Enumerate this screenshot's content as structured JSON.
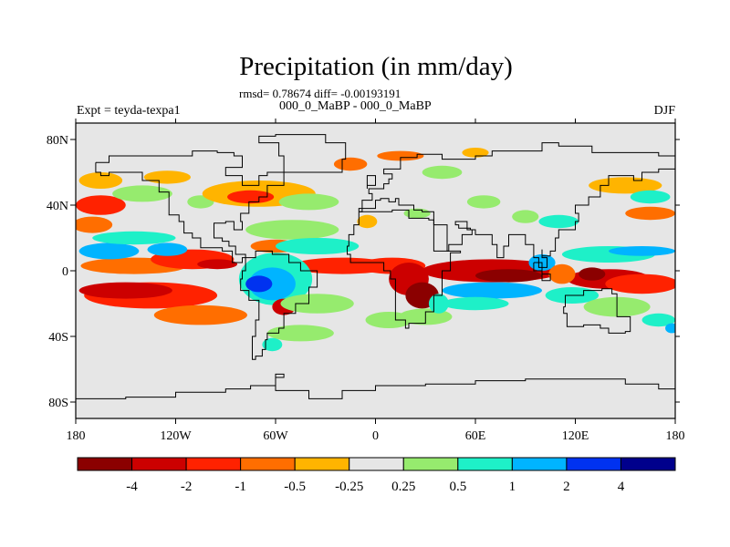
{
  "chart_data": {
    "type": "heatmap",
    "title": "Precipitation (in mm/day)",
    "subtitle_stats": "rmsd= 0.78674 diff= -0.00193191",
    "subtitle_run": "000_0_MaBP - 000_0_MaBP",
    "left_label": "Expt = teyda-texpa1",
    "right_label": "DJF",
    "x_ticks": [
      "180",
      "120W",
      "60W",
      "0",
      "60E",
      "120E",
      "180"
    ],
    "y_ticks": [
      "80N",
      "40N",
      "0",
      "40S",
      "80S"
    ],
    "xlim": [
      -180,
      180
    ],
    "ylim": [
      -90,
      90
    ],
    "colorbar": {
      "colors": [
        "#8b0000",
        "#cc0000",
        "#ff2200",
        "#ff6e00",
        "#ffb400",
        "#e6e6e6",
        "#96eb6e",
        "#1ef0c8",
        "#00b4ff",
        "#0032f0",
        "#00008c"
      ],
      "labels": [
        "-4",
        "-2",
        "-1",
        "-0.5",
        "-0.25",
        "0.25",
        "0.5",
        "1",
        "2",
        "4"
      ]
    },
    "anomaly_regions": [
      {
        "lon": -135,
        "lat": -15,
        "rlon": 40,
        "rlat": 8,
        "level": 2
      },
      {
        "lon": -150,
        "lat": -12,
        "rlon": 28,
        "rlat": 5,
        "level": 1
      },
      {
        "lon": -105,
        "lat": -27,
        "rlon": 28,
        "rlat": 6,
        "level": 3
      },
      {
        "lon": -145,
        "lat": 3,
        "rlon": 32,
        "rlat": 5,
        "level": 3
      },
      {
        "lon": -110,
        "lat": 7,
        "rlon": 25,
        "rlat": 6,
        "level": 2
      },
      {
        "lon": -95,
        "lat": 4,
        "rlon": 12,
        "rlat": 3,
        "level": 1
      },
      {
        "lon": -160,
        "lat": 12,
        "rlon": 18,
        "rlat": 5,
        "level": 8
      },
      {
        "lon": -125,
        "lat": 13,
        "rlon": 12,
        "rlat": 4,
        "level": 8
      },
      {
        "lon": -145,
        "lat": 20,
        "rlon": 25,
        "rlat": 4,
        "level": 7
      },
      {
        "lon": -170,
        "lat": 28,
        "rlon": 12,
        "rlat": 5,
        "level": 3
      },
      {
        "lon": -165,
        "lat": 40,
        "rlon": 15,
        "rlat": 6,
        "level": 2
      },
      {
        "lon": -165,
        "lat": 55,
        "rlon": 13,
        "rlat": 5,
        "level": 4
      },
      {
        "lon": -125,
        "lat": 57,
        "rlon": 14,
        "rlat": 4,
        "level": 4
      },
      {
        "lon": -140,
        "lat": 47,
        "rlon": 18,
        "rlat": 5,
        "level": 6
      },
      {
        "lon": -105,
        "lat": 42,
        "rlon": 8,
        "rlat": 4,
        "level": 6
      },
      {
        "lon": -70,
        "lat": 47,
        "rlon": 34,
        "rlat": 8,
        "level": 4
      },
      {
        "lon": -75,
        "lat": 45,
        "rlon": 14,
        "rlat": 4,
        "level": 2
      },
      {
        "lon": -40,
        "lat": 42,
        "rlon": 18,
        "rlat": 5,
        "level": 6
      },
      {
        "lon": -50,
        "lat": 25,
        "rlon": 28,
        "rlat": 6,
        "level": 6
      },
      {
        "lon": -60,
        "lat": 15,
        "rlon": 15,
        "rlat": 4,
        "level": 3
      },
      {
        "lon": -35,
        "lat": 15,
        "rlon": 25,
        "rlat": 5,
        "level": 7
      },
      {
        "lon": -20,
        "lat": 3,
        "rlon": 30,
        "rlat": 5,
        "level": 2
      },
      {
        "lon": -60,
        "lat": -5,
        "rlon": 22,
        "rlat": 16,
        "level": 7
      },
      {
        "lon": -62,
        "lat": -8,
        "rlon": 14,
        "rlat": 10,
        "level": 8
      },
      {
        "lon": -70,
        "lat": -8,
        "rlon": 8,
        "rlat": 5,
        "level": 9
      },
      {
        "lon": -55,
        "lat": -22,
        "rlon": 7,
        "rlat": 5,
        "level": 1
      },
      {
        "lon": -35,
        "lat": -20,
        "rlon": 22,
        "rlat": 6,
        "level": 6
      },
      {
        "lon": -45,
        "lat": -38,
        "rlon": 20,
        "rlat": 5,
        "level": 6
      },
      {
        "lon": -62,
        "lat": -45,
        "rlon": 6,
        "rlat": 4,
        "level": 7
      },
      {
        "lon": 8,
        "lat": -30,
        "rlon": 14,
        "rlat": 5,
        "level": 6
      },
      {
        "lon": 30,
        "lat": -28,
        "rlon": 16,
        "rlat": 5,
        "level": 6
      },
      {
        "lon": 10,
        "lat": 3,
        "rlon": 20,
        "rlat": 5,
        "level": 2
      },
      {
        "lon": 20,
        "lat": -5,
        "rlon": 12,
        "rlat": 10,
        "level": 1
      },
      {
        "lon": 28,
        "lat": -15,
        "rlon": 10,
        "rlat": 8,
        "level": 0
      },
      {
        "lon": 38,
        "lat": -20,
        "rlon": 6,
        "rlat": 6,
        "level": 7
      },
      {
        "lon": 70,
        "lat": 0,
        "rlon": 42,
        "rlat": 7,
        "level": 1
      },
      {
        "lon": 80,
        "lat": -3,
        "rlon": 20,
        "rlat": 4,
        "level": 0
      },
      {
        "lon": 70,
        "lat": -12,
        "rlon": 30,
        "rlat": 5,
        "level": 8
      },
      {
        "lon": 60,
        "lat": -20,
        "rlon": 20,
        "rlat": 4,
        "level": 7
      },
      {
        "lon": 140,
        "lat": -5,
        "rlon": 25,
        "rlat": 6,
        "level": 1
      },
      {
        "lon": 130,
        "lat": -2,
        "rlon": 8,
        "rlat": 4,
        "level": 0
      },
      {
        "lon": 160,
        "lat": -8,
        "rlon": 22,
        "rlat": 6,
        "level": 2
      },
      {
        "lon": 140,
        "lat": 10,
        "rlon": 28,
        "rlat": 5,
        "level": 7
      },
      {
        "lon": 160,
        "lat": 12,
        "rlon": 20,
        "rlat": 3,
        "level": 8
      },
      {
        "lon": 100,
        "lat": 5,
        "rlon": 8,
        "rlat": 5,
        "level": 8
      },
      {
        "lon": 112,
        "lat": -2,
        "rlon": 8,
        "rlat": 6,
        "level": 3
      },
      {
        "lon": 118,
        "lat": -15,
        "rlon": 16,
        "rlat": 5,
        "level": 7
      },
      {
        "lon": 145,
        "lat": -22,
        "rlon": 20,
        "rlat": 6,
        "level": 6
      },
      {
        "lon": 165,
        "lat": 35,
        "rlon": 15,
        "rlat": 4,
        "level": 3
      },
      {
        "lon": 150,
        "lat": 52,
        "rlon": 22,
        "rlat": 5,
        "level": 4
      },
      {
        "lon": 165,
        "lat": 45,
        "rlon": 12,
        "rlat": 4,
        "level": 7
      },
      {
        "lon": 110,
        "lat": 30,
        "rlon": 12,
        "rlat": 4,
        "level": 7
      },
      {
        "lon": 90,
        "lat": 33,
        "rlon": 8,
        "rlat": 4,
        "level": 6
      },
      {
        "lon": 65,
        "lat": 42,
        "rlon": 10,
        "rlat": 4,
        "level": 6
      },
      {
        "lon": 40,
        "lat": 60,
        "rlon": 12,
        "rlat": 4,
        "level": 6
      },
      {
        "lon": 15,
        "lat": 70,
        "rlon": 14,
        "rlat": 3,
        "level": 3
      },
      {
        "lon": -15,
        "lat": 65,
        "rlon": 10,
        "rlat": 4,
        "level": 3
      },
      {
        "lon": 60,
        "lat": 72,
        "rlon": 8,
        "rlat": 3,
        "level": 4
      },
      {
        "lon": 170,
        "lat": -30,
        "rlon": 10,
        "rlat": 4,
        "level": 7
      },
      {
        "lon": 178,
        "lat": -35,
        "rlon": 4,
        "rlat": 3,
        "level": 8
      },
      {
        "lon": -5,
        "lat": 30,
        "rlon": 6,
        "rlat": 4,
        "level": 4
      },
      {
        "lon": 25,
        "lat": 35,
        "rlon": 8,
        "rlat": 3,
        "level": 6
      }
    ],
    "continent_outlines": [
      [
        [
          -168,
          66
        ],
        [
          -160,
          70
        ],
        [
          -140,
          70
        ],
        [
          -125,
          70
        ],
        [
          -110,
          73
        ],
        [
          -95,
          72
        ],
        [
          -85,
          70
        ],
        [
          -80,
          63
        ],
        [
          -90,
          58
        ],
        [
          -80,
          52
        ],
        [
          -70,
          58
        ],
        [
          -65,
          60
        ],
        [
          -55,
          52
        ],
        [
          -65,
          45
        ],
        [
          -70,
          42
        ],
        [
          -76,
          35
        ],
        [
          -81,
          30
        ],
        [
          -80,
          25
        ],
        [
          -85,
          30
        ],
        [
          -90,
          29
        ],
        [
          -97,
          26
        ],
        [
          -97,
          20
        ],
        [
          -92,
          18
        ],
        [
          -88,
          15
        ],
        [
          -84,
          10
        ],
        [
          -78,
          8
        ],
        [
          -80,
          5
        ],
        [
          -86,
          12
        ],
        [
          -92,
          14
        ],
        [
          -105,
          20
        ],
        [
          -110,
          23
        ],
        [
          -115,
          30
        ],
        [
          -118,
          34
        ],
        [
          -124,
          40
        ],
        [
          -124,
          48
        ],
        [
          -130,
          55
        ],
        [
          -140,
          60
        ],
        [
          -150,
          60
        ],
        [
          -160,
          58
        ],
        [
          -165,
          60
        ],
        [
          -168,
          66
        ]
      ],
      [
        [
          -78,
          8
        ],
        [
          -72,
          12
        ],
        [
          -62,
          10
        ],
        [
          -52,
          5
        ],
        [
          -45,
          0
        ],
        [
          -35,
          -5
        ],
        [
          -35,
          -10
        ],
        [
          -40,
          -20
        ],
        [
          -48,
          -26
        ],
        [
          -55,
          -35
        ],
        [
          -58,
          -38
        ],
        [
          -65,
          -42
        ],
        [
          -66,
          -48
        ],
        [
          -68,
          -52
        ],
        [
          -72,
          -54
        ],
        [
          -74,
          -50
        ],
        [
          -74,
          -40
        ],
        [
          -72,
          -30
        ],
        [
          -70,
          -18
        ],
        [
          -76,
          -12
        ],
        [
          -81,
          -5
        ],
        [
          -80,
          0
        ],
        [
          -78,
          8
        ]
      ],
      [
        [
          -55,
          60
        ],
        [
          -45,
          60
        ],
        [
          -20,
          68
        ],
        [
          -18,
          78
        ],
        [
          -30,
          83
        ],
        [
          -60,
          82
        ],
        [
          -70,
          78
        ],
        [
          -58,
          70
        ],
        [
          -55,
          60
        ]
      ],
      [
        [
          -10,
          36
        ],
        [
          -5,
          36
        ],
        [
          10,
          37
        ],
        [
          20,
          32
        ],
        [
          32,
          31
        ],
        [
          35,
          28
        ],
        [
          43,
          12
        ],
        [
          51,
          11
        ],
        [
          45,
          0
        ],
        [
          40,
          -5
        ],
        [
          40,
          -15
        ],
        [
          35,
          -25
        ],
        [
          30,
          -32
        ],
        [
          20,
          -35
        ],
        [
          18,
          -30
        ],
        [
          12,
          -18
        ],
        [
          12,
          -5
        ],
        [
          9,
          0
        ],
        [
          5,
          5
        ],
        [
          -8,
          5
        ],
        [
          -15,
          10
        ],
        [
          -17,
          15
        ],
        [
          -16,
          22
        ],
        [
          -13,
          28
        ],
        [
          -10,
          36
        ]
      ],
      [
        [
          -10,
          36
        ],
        [
          -8,
          43
        ],
        [
          -2,
          47
        ],
        [
          -4,
          50
        ],
        [
          5,
          53
        ],
        [
          8,
          56
        ],
        [
          10,
          59
        ],
        [
          5,
          62
        ],
        [
          15,
          69
        ],
        [
          25,
          71
        ],
        [
          40,
          68
        ],
        [
          60,
          70
        ],
        [
          70,
          73
        ],
        [
          80,
          73
        ],
        [
          100,
          78
        ],
        [
          110,
          76
        ],
        [
          130,
          72
        ],
        [
          150,
          72
        ],
        [
          170,
          70
        ],
        [
          180,
          68
        ],
        [
          180,
          62
        ],
        [
          170,
          60
        ],
        [
          160,
          55
        ],
        [
          155,
          58
        ],
        [
          140,
          52
        ],
        [
          135,
          45
        ],
        [
          128,
          40
        ],
        [
          122,
          40
        ],
        [
          120,
          35
        ],
        [
          122,
          30
        ],
        [
          120,
          25
        ],
        [
          110,
          20
        ],
        [
          108,
          12
        ],
        [
          105,
          9
        ],
        [
          100,
          13
        ],
        [
          100,
          8
        ],
        [
          103,
          2
        ],
        [
          98,
          8
        ],
        [
          95,
          16
        ],
        [
          90,
          22
        ],
        [
          80,
          15
        ],
        [
          77,
          8
        ],
        [
          73,
          16
        ],
        [
          70,
          22
        ],
        [
          60,
          25
        ],
        [
          57,
          26
        ],
        [
          50,
          28
        ],
        [
          48,
          30
        ],
        [
          55,
          25
        ],
        [
          58,
          22
        ],
        [
          52,
          16
        ],
        [
          44,
          12
        ],
        [
          35,
          30
        ],
        [
          35,
          36
        ],
        [
          28,
          37
        ],
        [
          23,
          40
        ],
        [
          20,
          40
        ],
        [
          14,
          44
        ],
        [
          12,
          42
        ],
        [
          8,
          44
        ],
        [
          3,
          43
        ],
        [
          0,
          38
        ],
        [
          -10,
          36
        ]
      ],
      [
        [
          114,
          -22
        ],
        [
          113,
          -26
        ],
        [
          115,
          -34
        ],
        [
          125,
          -33
        ],
        [
          135,
          -35
        ],
        [
          140,
          -38
        ],
        [
          150,
          -37
        ],
        [
          153,
          -28
        ],
        [
          145,
          -14
        ],
        [
          142,
          -11
        ],
        [
          136,
          -12
        ],
        [
          130,
          -12
        ],
        [
          125,
          -15
        ],
        [
          114,
          -22
        ]
      ],
      [
        [
          -180,
          -78
        ],
        [
          -150,
          -77
        ],
        [
          -120,
          -74
        ],
        [
          -90,
          -72
        ],
        [
          -75,
          -70
        ],
        [
          -60,
          -63
        ],
        [
          -55,
          -65
        ],
        [
          -60,
          -73
        ],
        [
          -40,
          -78
        ],
        [
          -20,
          -73
        ],
        [
          0,
          -70
        ],
        [
          30,
          -69
        ],
        [
          60,
          -67
        ],
        [
          90,
          -66
        ],
        [
          120,
          -66
        ],
        [
          150,
          -69
        ],
        [
          170,
          -72
        ],
        [
          180,
          -78
        ]
      ],
      [
        [
          95,
          5
        ],
        [
          100,
          -2
        ],
        [
          105,
          -6
        ],
        [
          100,
          0
        ],
        [
          95,
          5
        ]
      ],
      [
        [
          -5,
          50
        ],
        [
          -5,
          58
        ],
        [
          -2,
          58
        ],
        [
          0,
          52
        ],
        [
          -5,
          50
        ]
      ]
    ]
  }
}
